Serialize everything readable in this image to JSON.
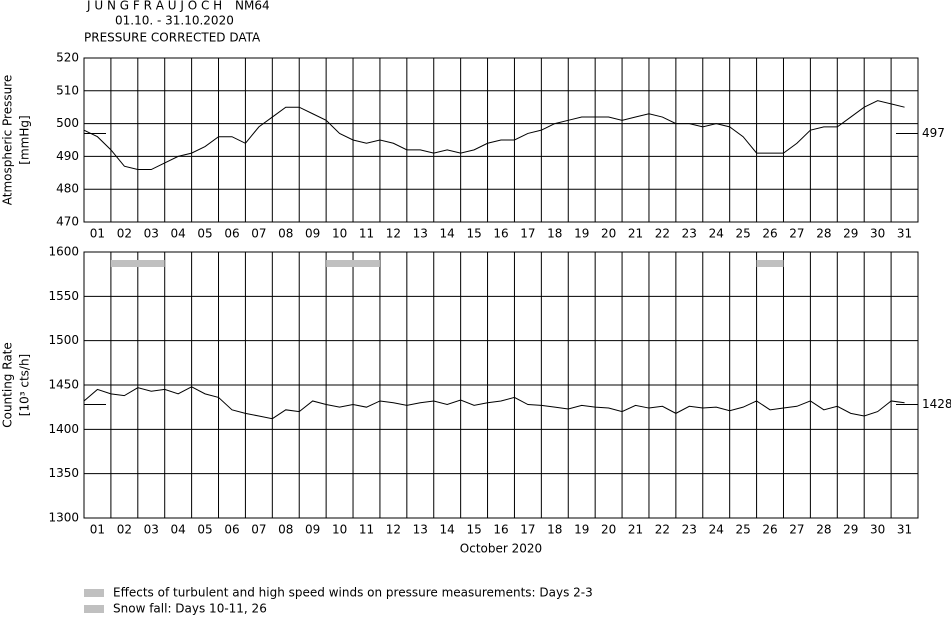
{
  "header": {
    "station": "J U N G F R A U J O C H",
    "detector": "NM64",
    "period": "01.10. - 31.10.2020",
    "subtitle": "PRESSURE CORRECTED DATA"
  },
  "chart_data": [
    {
      "type": "line",
      "ylabel": [
        "Atmospheric Pressure",
        "[mmHg]"
      ],
      "grid": true,
      "color": "#000000",
      "xlim": [
        1,
        32
      ],
      "ylim": [
        470,
        520
      ],
      "yticks": [
        470,
        480,
        490,
        500,
        510,
        520
      ],
      "xticks": [
        {
          "value": 1.5,
          "label": "01"
        },
        {
          "value": 2.5,
          "label": "02"
        },
        {
          "value": 3.5,
          "label": "03"
        },
        {
          "value": 4.5,
          "label": "04"
        },
        {
          "value": 5.5,
          "label": "05"
        },
        {
          "value": 6.5,
          "label": "06"
        },
        {
          "value": 7.5,
          "label": "07"
        },
        {
          "value": 8.5,
          "label": "08"
        },
        {
          "value": 9.5,
          "label": "09"
        },
        {
          "value": 10.5,
          "label": "10"
        },
        {
          "value": 11.5,
          "label": "11"
        },
        {
          "value": 12.5,
          "label": "12"
        },
        {
          "value": 13.5,
          "label": "13"
        },
        {
          "value": 14.5,
          "label": "14"
        },
        {
          "value": 15.5,
          "label": "15"
        },
        {
          "value": 16.5,
          "label": "16"
        },
        {
          "value": 17.5,
          "label": "17"
        },
        {
          "value": 18.5,
          "label": "18"
        },
        {
          "value": 19.5,
          "label": "19"
        },
        {
          "value": 20.5,
          "label": "20"
        },
        {
          "value": 21.5,
          "label": "21"
        },
        {
          "value": 22.5,
          "label": "22"
        },
        {
          "value": 23.5,
          "label": "23"
        },
        {
          "value": 24.5,
          "label": "24"
        },
        {
          "value": 25.5,
          "label": "25"
        },
        {
          "value": 26.5,
          "label": "26"
        },
        {
          "value": 27.5,
          "label": "27"
        },
        {
          "value": 28.5,
          "label": "28"
        },
        {
          "value": 29.5,
          "label": "29"
        },
        {
          "value": 30.5,
          "label": "30"
        },
        {
          "value": 31.5,
          "label": "31"
        }
      ],
      "x": [
        1,
        1.5,
        2,
        2.5,
        3,
        3.5,
        4,
        4.5,
        5,
        5.5,
        6,
        6.5,
        7,
        7.5,
        8,
        8.5,
        9,
        9.5,
        10,
        10.5,
        11,
        11.5,
        12,
        12.5,
        13,
        13.5,
        14,
        14.5,
        15,
        15.5,
        16,
        16.5,
        17,
        17.5,
        18,
        18.5,
        19,
        19.5,
        20,
        20.5,
        21,
        21.5,
        22,
        22.5,
        23,
        23.5,
        24,
        24.5,
        25,
        25.5,
        26,
        26.5,
        27,
        27.5,
        28,
        28.5,
        29,
        29.5,
        30,
        30.5,
        31,
        31.5
      ],
      "values": [
        498,
        496,
        492,
        487,
        486,
        486,
        488,
        490,
        491,
        493,
        496,
        496,
        494,
        499,
        502,
        505,
        505,
        503,
        501,
        497,
        495,
        494,
        495,
        494,
        492,
        492,
        491,
        492,
        491,
        492,
        494,
        495,
        495,
        497,
        498,
        500,
        501,
        502,
        502,
        502,
        501,
        502,
        503,
        502,
        500,
        500,
        499,
        500,
        499,
        496,
        491,
        491,
        491,
        494,
        498,
        499,
        499,
        502,
        505,
        507,
        506,
        505
      ],
      "reference_value": 497
    },
    {
      "type": "line",
      "ylabel": [
        "Counting Rate",
        "[10³ cts/h]"
      ],
      "xlabel": "October 2020",
      "grid": true,
      "color": "#000000",
      "xlim": [
        1,
        32
      ],
      "ylim": [
        1300,
        1600
      ],
      "yticks": [
        1300,
        1350,
        1400,
        1450,
        1500,
        1550,
        1600
      ],
      "xticks": [
        {
          "value": 1.5,
          "label": "01"
        },
        {
          "value": 2.5,
          "label": "02"
        },
        {
          "value": 3.5,
          "label": "03"
        },
        {
          "value": 4.5,
          "label": "04"
        },
        {
          "value": 5.5,
          "label": "05"
        },
        {
          "value": 6.5,
          "label": "06"
        },
        {
          "value": 7.5,
          "label": "07"
        },
        {
          "value": 8.5,
          "label": "08"
        },
        {
          "value": 9.5,
          "label": "09"
        },
        {
          "value": 10.5,
          "label": "10"
        },
        {
          "value": 11.5,
          "label": "11"
        },
        {
          "value": 12.5,
          "label": "12"
        },
        {
          "value": 13.5,
          "label": "13"
        },
        {
          "value": 14.5,
          "label": "14"
        },
        {
          "value": 15.5,
          "label": "15"
        },
        {
          "value": 16.5,
          "label": "16"
        },
        {
          "value": 17.5,
          "label": "17"
        },
        {
          "value": 18.5,
          "label": "18"
        },
        {
          "value": 19.5,
          "label": "19"
        },
        {
          "value": 20.5,
          "label": "20"
        },
        {
          "value": 21.5,
          "label": "21"
        },
        {
          "value": 22.5,
          "label": "22"
        },
        {
          "value": 23.5,
          "label": "23"
        },
        {
          "value": 24.5,
          "label": "24"
        },
        {
          "value": 25.5,
          "label": "25"
        },
        {
          "value": 26.5,
          "label": "26"
        },
        {
          "value": 27.5,
          "label": "27"
        },
        {
          "value": 28.5,
          "label": "28"
        },
        {
          "value": 29.5,
          "label": "29"
        },
        {
          "value": 30.5,
          "label": "30"
        },
        {
          "value": 31.5,
          "label": "31"
        }
      ],
      "x": [
        1,
        1.5,
        2,
        2.5,
        3,
        3.5,
        4,
        4.5,
        5,
        5.5,
        6,
        6.5,
        7,
        7.5,
        8,
        8.5,
        9,
        9.5,
        10,
        10.5,
        11,
        11.5,
        12,
        12.5,
        13,
        13.5,
        14,
        14.5,
        15,
        15.5,
        16,
        16.5,
        17,
        17.5,
        18,
        18.5,
        19,
        19.5,
        20,
        20.5,
        21,
        21.5,
        22,
        22.5,
        23,
        23.5,
        24,
        24.5,
        25,
        25.5,
        26,
        26.5,
        27,
        27.5,
        28,
        28.5,
        29,
        29.5,
        30,
        30.5,
        31,
        31.5
      ],
      "values": [
        1432,
        1445,
        1440,
        1438,
        1447,
        1443,
        1445,
        1440,
        1448,
        1440,
        1436,
        1422,
        1418,
        1415,
        1412,
        1422,
        1420,
        1432,
        1428,
        1425,
        1428,
        1425,
        1432,
        1430,
        1427,
        1430,
        1432,
        1428,
        1433,
        1427,
        1430,
        1432,
        1436,
        1428,
        1427,
        1425,
        1423,
        1427,
        1425,
        1424,
        1420,
        1427,
        1424,
        1426,
        1418,
        1426,
        1424,
        1425,
        1421,
        1425,
        1432,
        1422,
        1424,
        1426,
        1432,
        1422,
        1426,
        1418,
        1415,
        1420,
        1432,
        1430
      ],
      "reference_value": 1428,
      "highlight_color": "#c0c0c0",
      "highlights": [
        {
          "start": 2,
          "end": 4
        },
        {
          "start": 10,
          "end": 12
        },
        {
          "start": 26,
          "end": 27
        }
      ],
      "notes": [
        "Effects of turbulent and high speed winds on pressure measurements: Days 2-3",
        "Snow fall: Days 10-11, 26"
      ]
    }
  ]
}
